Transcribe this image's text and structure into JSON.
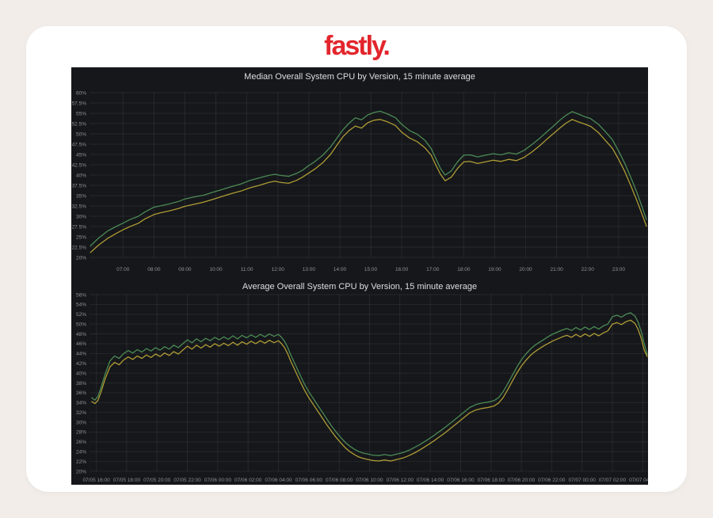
{
  "page": {
    "logo_text": "fastly.",
    "logo_color": "#e2262c",
    "background_color": "#f2ede9",
    "card_color": "#ffffff",
    "panel_color": "#15171b"
  },
  "chart_data": [
    {
      "type": "line",
      "title": "Median Overall System CPU by Version, 15 minute average",
      "xlabel": "",
      "ylabel": "",
      "grid": true,
      "legend": "none",
      "ylim": [
        20,
        60
      ],
      "xlim": [
        5.92,
        23.95
      ],
      "yticks": [
        {
          "v": 60,
          "label": "60%"
        },
        {
          "v": 57.5,
          "label": "57.5%"
        },
        {
          "v": 55,
          "label": "55%"
        },
        {
          "v": 52.5,
          "label": "52.5%"
        },
        {
          "v": 50,
          "label": "50%"
        },
        {
          "v": 47.5,
          "label": "47.5%"
        },
        {
          "v": 45,
          "label": "45%"
        },
        {
          "v": 42.5,
          "label": "42.5%"
        },
        {
          "v": 40,
          "label": "40%"
        },
        {
          "v": 37.5,
          "label": "37.5%"
        },
        {
          "v": 35,
          "label": "35%"
        },
        {
          "v": 32.5,
          "label": "32.5%"
        },
        {
          "v": 30,
          "label": "30%"
        },
        {
          "v": 27.5,
          "label": "27.5%"
        },
        {
          "v": 25,
          "label": "25%"
        },
        {
          "v": 22.5,
          "label": "22.5%"
        },
        {
          "v": 20,
          "label": "20%"
        }
      ],
      "xticks": [
        {
          "v": 7,
          "label": "07:00"
        },
        {
          "v": 8,
          "label": "08:00"
        },
        {
          "v": 9,
          "label": "09:00"
        },
        {
          "v": 10,
          "label": "10:00"
        },
        {
          "v": 11,
          "label": "11:00"
        },
        {
          "v": 12,
          "label": "12:00"
        },
        {
          "v": 13,
          "label": "13:00"
        },
        {
          "v": 14,
          "label": "14:00"
        },
        {
          "v": 15,
          "label": "15:00"
        },
        {
          "v": 16,
          "label": "16:00"
        },
        {
          "v": 17,
          "label": "17:00"
        },
        {
          "v": 18,
          "label": "18:00"
        },
        {
          "v": 19,
          "label": "19:00"
        },
        {
          "v": 20,
          "label": "20:00"
        },
        {
          "v": 21,
          "label": "21:00"
        },
        {
          "v": 22,
          "label": "22:00"
        },
        {
          "v": 23,
          "label": "23:00"
        }
      ],
      "x": [
        5.95,
        6.2,
        6.5,
        6.8,
        7.0,
        7.2,
        7.5,
        7.7,
        8.0,
        8.2,
        8.5,
        8.8,
        9.0,
        9.3,
        9.6,
        9.9,
        10.2,
        10.5,
        10.8,
        11.1,
        11.4,
        11.7,
        11.9,
        12.1,
        12.35,
        12.6,
        12.8,
        13.0,
        13.2,
        13.45,
        13.7,
        13.9,
        14.1,
        14.3,
        14.5,
        14.7,
        14.9,
        15.1,
        15.3,
        15.55,
        15.8,
        16.0,
        16.25,
        16.5,
        16.75,
        16.95,
        17.1,
        17.25,
        17.4,
        17.6,
        17.8,
        18.0,
        18.2,
        18.45,
        18.7,
        18.95,
        19.2,
        19.45,
        19.7,
        19.95,
        20.2,
        20.45,
        20.7,
        20.9,
        21.1,
        21.3,
        21.5,
        21.7,
        21.9,
        22.1,
        22.35,
        22.6,
        22.8,
        23.0,
        23.2,
        23.4,
        23.6,
        23.75,
        23.9
      ],
      "series": [
        {
          "name": "median-cpu-version-green",
          "color": "#4c8a54",
          "values": [
            22.8,
            24.6,
            26.4,
            27.6,
            28.3,
            29.1,
            30.0,
            31.0,
            32.2,
            32.5,
            33.0,
            33.6,
            34.2,
            34.7,
            35.1,
            35.8,
            36.5,
            37.2,
            37.8,
            38.7,
            39.3,
            39.9,
            40.2,
            39.9,
            39.7,
            40.4,
            41.2,
            42.3,
            43.3,
            44.8,
            46.8,
            48.9,
            51.0,
            52.6,
            53.9,
            53.4,
            54.6,
            55.2,
            55.5,
            54.8,
            53.9,
            52.3,
            50.8,
            49.9,
            48.4,
            46.4,
            44.0,
            41.6,
            40.0,
            41.0,
            43.2,
            44.8,
            44.9,
            44.4,
            44.8,
            45.2,
            44.9,
            45.4,
            45.1,
            46.0,
            47.4,
            48.9,
            50.6,
            51.9,
            53.3,
            54.5,
            55.4,
            54.8,
            54.2,
            53.7,
            52.3,
            50.3,
            48.6,
            45.8,
            42.8,
            39.3,
            35.6,
            32.4,
            29.2
          ]
        },
        {
          "name": "median-cpu-version-yellow",
          "color": "#af9c34",
          "values": [
            21.2,
            22.9,
            24.6,
            25.9,
            26.7,
            27.4,
            28.3,
            29.3,
            30.4,
            30.8,
            31.3,
            31.9,
            32.4,
            32.9,
            33.4,
            34.1,
            34.8,
            35.5,
            36.1,
            36.9,
            37.5,
            38.2,
            38.5,
            38.2,
            38.0,
            38.7,
            39.5,
            40.5,
            41.5,
            43.0,
            45.0,
            47.2,
            49.3,
            50.8,
            51.9,
            51.4,
            52.7,
            53.3,
            53.5,
            52.9,
            52.0,
            50.4,
            49.0,
            48.1,
            46.6,
            44.8,
            42.4,
            40.2,
            38.6,
            39.5,
            41.6,
            43.2,
            43.3,
            42.8,
            43.2,
            43.6,
            43.3,
            43.8,
            43.5,
            44.3,
            45.6,
            47.1,
            48.8,
            50.1,
            51.4,
            52.6,
            53.5,
            52.9,
            52.4,
            51.8,
            50.3,
            48.2,
            46.5,
            43.8,
            40.8,
            37.3,
            33.6,
            30.6,
            27.6
          ]
        }
      ]
    },
    {
      "type": "line",
      "title": "Average Overall System CPU by Version, 15 minute average",
      "xlabel": "",
      "ylabel": "",
      "grid": true,
      "legend": "none",
      "ylim": [
        20,
        56
      ],
      "xlim": [
        15.55,
        52.35
      ],
      "yticks": [
        {
          "v": 56,
          "label": "56%"
        },
        {
          "v": 54,
          "label": "54%"
        },
        {
          "v": 52,
          "label": "52%"
        },
        {
          "v": 50,
          "label": "50%"
        },
        {
          "v": 48,
          "label": "48%"
        },
        {
          "v": 46,
          "label": "46%"
        },
        {
          "v": 44,
          "label": "44%"
        },
        {
          "v": 42,
          "label": "42%"
        },
        {
          "v": 40,
          "label": "40%"
        },
        {
          "v": 38,
          "label": "38%"
        },
        {
          "v": 36,
          "label": "36%"
        },
        {
          "v": 34,
          "label": "34%"
        },
        {
          "v": 32,
          "label": "32%"
        },
        {
          "v": 30,
          "label": "30%"
        },
        {
          "v": 28,
          "label": "28%"
        },
        {
          "v": 26,
          "label": "26%"
        },
        {
          "v": 24,
          "label": "24%"
        },
        {
          "v": 22,
          "label": "22%"
        },
        {
          "v": 20,
          "label": "20%"
        }
      ],
      "xticks": [
        {
          "v": 16,
          "label": "07/05 16:00"
        },
        {
          "v": 18,
          "label": "07/05 18:00"
        },
        {
          "v": 20,
          "label": "07/05 20:00"
        },
        {
          "v": 22,
          "label": "07/05 22:00"
        },
        {
          "v": 24,
          "label": "07/06 00:00"
        },
        {
          "v": 26,
          "label": "07/06 02:00"
        },
        {
          "v": 28,
          "label": "07/06 04:00"
        },
        {
          "v": 30,
          "label": "07/06 06:00"
        },
        {
          "v": 32,
          "label": "07/06 08:00"
        },
        {
          "v": 34,
          "label": "07/06 10:00"
        },
        {
          "v": 36,
          "label": "07/06 12:00"
        },
        {
          "v": 38,
          "label": "07/06 14:00"
        },
        {
          "v": 40,
          "label": "07/06 16:00"
        },
        {
          "v": 42,
          "label": "07/06 18:00"
        },
        {
          "v": 44,
          "label": "07/06 20:00"
        },
        {
          "v": 46,
          "label": "07/06 22:00"
        },
        {
          "v": 48,
          "label": "07/07 00:00"
        },
        {
          "v": 50,
          "label": "07/07 02:00"
        },
        {
          "v": 52,
          "label": "07/07 04:00"
        }
      ],
      "x": [
        15.7,
        15.9,
        16.1,
        16.3,
        16.6,
        16.9,
        17.2,
        17.5,
        17.8,
        18.1,
        18.4,
        18.7,
        19.0,
        19.3,
        19.6,
        19.9,
        20.2,
        20.5,
        20.8,
        21.1,
        21.4,
        21.7,
        22.0,
        22.3,
        22.6,
        22.9,
        23.2,
        23.5,
        23.8,
        24.1,
        24.4,
        24.7,
        25.0,
        25.3,
        25.6,
        25.9,
        26.2,
        26.5,
        26.8,
        27.1,
        27.4,
        27.7,
        28.0,
        28.2,
        28.4,
        28.6,
        28.8,
        29.1,
        29.4,
        29.7,
        30.0,
        30.3,
        30.6,
        30.9,
        31.2,
        31.5,
        31.8,
        32.1,
        32.4,
        32.7,
        33.0,
        33.3,
        33.6,
        33.9,
        34.2,
        34.6,
        35.0,
        35.4,
        35.8,
        36.2,
        36.6,
        37.0,
        37.4,
        37.8,
        38.2,
        38.6,
        39.0,
        39.4,
        39.8,
        40.2,
        40.6,
        41.0,
        41.4,
        41.8,
        42.2,
        42.5,
        42.8,
        43.1,
        43.4,
        43.7,
        44.0,
        44.3,
        44.6,
        44.9,
        45.2,
        45.5,
        45.8,
        46.1,
        46.4,
        46.7,
        47.0,
        47.3,
        47.6,
        47.9,
        48.2,
        48.5,
        48.8,
        49.1,
        49.4,
        49.7,
        50.0,
        50.3,
        50.6,
        50.9,
        51.2,
        51.5,
        51.7,
        51.9,
        52.1,
        52.3
      ],
      "series": [
        {
          "name": "average-cpu-version-green",
          "color": "#4c8a54",
          "values": [
            35.0,
            34.5,
            35.2,
            37.0,
            40.0,
            42.5,
            43.5,
            43.0,
            44.0,
            44.6,
            44.1,
            44.8,
            44.3,
            45.0,
            44.5,
            45.2,
            44.7,
            45.4,
            44.9,
            45.7,
            45.2,
            46.0,
            46.8,
            46.2,
            47.0,
            46.4,
            47.1,
            46.6,
            47.3,
            46.8,
            47.4,
            46.9,
            47.6,
            47.0,
            47.7,
            47.2,
            47.8,
            47.3,
            47.9,
            47.4,
            48.0,
            47.5,
            47.9,
            47.3,
            46.5,
            45.3,
            43.8,
            41.8,
            39.8,
            37.8,
            36.2,
            34.8,
            33.4,
            32.0,
            30.6,
            29.2,
            28.0,
            26.9,
            25.9,
            25.1,
            24.5,
            24.0,
            23.7,
            23.5,
            23.3,
            23.2,
            23.4,
            23.2,
            23.5,
            23.8,
            24.3,
            24.9,
            25.6,
            26.4,
            27.2,
            28.1,
            29.0,
            30.0,
            31.0,
            32.0,
            33.0,
            33.6,
            33.9,
            34.1,
            34.4,
            35.0,
            36.2,
            37.8,
            39.5,
            41.2,
            42.7,
            43.9,
            44.9,
            45.7,
            46.3,
            46.9,
            47.5,
            48.0,
            48.4,
            48.8,
            49.1,
            48.7,
            49.3,
            48.8,
            49.4,
            48.9,
            49.5,
            49.0,
            49.6,
            50.0,
            51.5,
            51.8,
            51.4,
            52.0,
            52.3,
            51.6,
            50.4,
            48.5,
            46.0,
            43.8
          ]
        },
        {
          "name": "average-cpu-version-yellow",
          "color": "#af9c34",
          "values": [
            34.2,
            33.8,
            34.4,
            36.1,
            39.0,
            41.3,
            42.2,
            41.7,
            42.7,
            43.3,
            42.8,
            43.5,
            43.0,
            43.7,
            43.2,
            43.9,
            43.4,
            44.1,
            43.6,
            44.4,
            43.9,
            44.7,
            45.5,
            44.9,
            45.7,
            45.1,
            45.8,
            45.3,
            46.0,
            45.5,
            46.1,
            45.6,
            46.3,
            45.7,
            46.4,
            45.9,
            46.5,
            46.0,
            46.6,
            46.1,
            46.7,
            46.2,
            46.6,
            46.0,
            45.2,
            44.0,
            42.5,
            40.5,
            38.5,
            36.6,
            35.0,
            33.6,
            32.2,
            30.8,
            29.4,
            28.1,
            26.9,
            25.8,
            24.8,
            24.0,
            23.4,
            22.9,
            22.6,
            22.4,
            22.2,
            22.1,
            22.3,
            22.1,
            22.4,
            22.7,
            23.2,
            23.8,
            24.5,
            25.3,
            26.1,
            27.0,
            27.9,
            28.9,
            29.9,
            30.9,
            31.9,
            32.5,
            32.8,
            33.0,
            33.3,
            33.9,
            35.0,
            36.6,
            38.3,
            40.0,
            41.4,
            42.6,
            43.6,
            44.4,
            45.0,
            45.6,
            46.1,
            46.6,
            47.0,
            47.4,
            47.7,
            47.3,
            47.9,
            47.4,
            48.0,
            47.5,
            48.1,
            47.6,
            48.2,
            48.6,
            50.0,
            50.3,
            49.9,
            50.5,
            50.8,
            50.1,
            48.9,
            47.1,
            44.7,
            43.4
          ]
        }
      ]
    }
  ]
}
